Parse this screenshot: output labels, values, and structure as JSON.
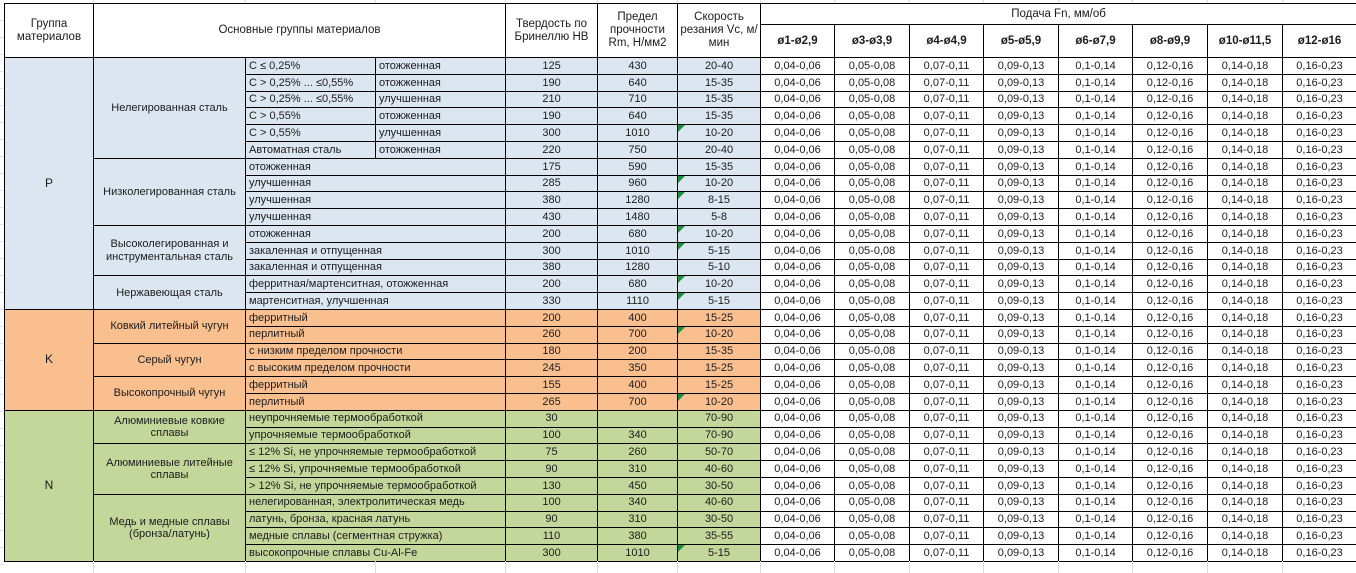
{
  "table": {
    "header": {
      "group": "Группа материалов",
      "main_groups": "Основные группы материалов",
      "hardness": "Твердость по Бринеллю HB",
      "strength": "Предел прочности Rm, Н/мм2",
      "speed": "Скорость резания Vc, м/мин",
      "feed": "Подача Fn, мм/об",
      "feed_columns": [
        "ø1-ø2,9",
        "ø3-ø3,9",
        "ø4-ø4,9",
        "ø5-ø5,9",
        "ø6-ø7,9",
        "ø8-ø9,9",
        "ø10-ø11,5",
        "ø12-ø16"
      ]
    },
    "feed_values": [
      "0,04-0,06",
      "0,05-0,08",
      "0,07-0,11",
      "0,09-0,13",
      "0,1-0,14",
      "0,12-0,16",
      "0,14-0,18",
      "0,16-0,23"
    ],
    "groups": [
      {
        "letter": "P",
        "color": "#dce6f1",
        "blocks": [
          {
            "name": "Нелегированная сталь",
            "rows": [
              {
                "sub1": "C ≤ 0,25%",
                "sub2": "отожженная",
                "hb": "125",
                "rm": "430",
                "vc": "20-40",
                "flag": false
              },
              {
                "sub1": "C > 0,25% ... ≤0,55%",
                "sub2": "отожженная",
                "hb": "190",
                "rm": "640",
                "vc": "15-35",
                "flag": false
              },
              {
                "sub1": "C > 0,25% ... ≤0,55%",
                "sub2": "улучшенная",
                "hb": "210",
                "rm": "710",
                "vc": "15-35",
                "flag": false
              },
              {
                "sub1": "C > 0,55%",
                "sub2": "отожженная",
                "hb": "190",
                "rm": "640",
                "vc": "15-35",
                "flag": false
              },
              {
                "sub1": "C > 0,55%",
                "sub2": "улучшенная",
                "hb": "300",
                "rm": "1010",
                "vc": "10-20",
                "flag": true
              },
              {
                "sub1": "Автоматная сталь",
                "sub2": "отожженная",
                "hb": "220",
                "rm": "750",
                "vc": "20-40",
                "flag": false
              }
            ]
          },
          {
            "name": "Низколегированная сталь",
            "rows": [
              {
                "sub": "отожженная",
                "hb": "175",
                "rm": "590",
                "vc": "15-35",
                "flag": false
              },
              {
                "sub": "улучшенная",
                "hb": "285",
                "rm": "960",
                "vc": "10-20",
                "flag": true
              },
              {
                "sub": "улучшенная",
                "hb": "380",
                "rm": "1280",
                "vc": "8-15",
                "flag": true
              },
              {
                "sub": "улучшенная",
                "hb": "430",
                "rm": "1480",
                "vc": "5-8",
                "flag": false
              }
            ]
          },
          {
            "name": "Высоколегированная и инструментальная сталь",
            "rows": [
              {
                "sub": "отожженная",
                "hb": "200",
                "rm": "680",
                "vc": "10-20",
                "flag": true
              },
              {
                "sub": "закаленная и отпущенная",
                "hb": "300",
                "rm": "1010",
                "vc": "5-15",
                "flag": true
              },
              {
                "sub": "закаленная и отпущенная",
                "hb": "380",
                "rm": "1280",
                "vc": "5-10",
                "flag": false
              }
            ]
          },
          {
            "name": "Нержавеющая сталь",
            "rows": [
              {
                "sub": "ферритная/мартенситная, отожженная",
                "hb": "200",
                "rm": "680",
                "vc": "10-20",
                "flag": true
              },
              {
                "sub": "мартенситная, улучшенная",
                "hb": "330",
                "rm": "1110",
                "vc": "5-15",
                "flag": true
              }
            ]
          }
        ]
      },
      {
        "letter": "K",
        "color": "#fabf8f",
        "blocks": [
          {
            "name": "Ковкий литейный чугун",
            "rows": [
              {
                "sub": "ферритный",
                "hb": "200",
                "rm": "400",
                "vc": "15-25",
                "flag": false
              },
              {
                "sub": "перлитный",
                "hb": "260",
                "rm": "700",
                "vc": "10-20",
                "flag": true
              }
            ]
          },
          {
            "name": "Серый чугун",
            "rows": [
              {
                "sub": "с низким пределом прочности",
                "hb": "180",
                "rm": "200",
                "vc": "15-35",
                "flag": false
              },
              {
                "sub": "с высоким пределом прочности",
                "hb": "245",
                "rm": "350",
                "vc": "15-25",
                "flag": false
              }
            ]
          },
          {
            "name": "Высокопрочный чугун",
            "rows": [
              {
                "sub": "ферритный",
                "hb": "155",
                "rm": "400",
                "vc": "15-25",
                "flag": false
              },
              {
                "sub": "перлитный",
                "hb": "265",
                "rm": "700",
                "vc": "10-20",
                "flag": true
              }
            ]
          }
        ]
      },
      {
        "letter": "N",
        "color": "#c4d79b",
        "blocks": [
          {
            "name": "Алюминиевые ковкие сплавы",
            "rows": [
              {
                "sub": "неупрочняемые термообработкой",
                "hb": "30",
                "rm": "",
                "vc": "70-90",
                "flag": false
              },
              {
                "sub": "упрочняемые термообработкой",
                "hb": "100",
                "rm": "340",
                "vc": "70-90",
                "flag": false
              }
            ]
          },
          {
            "name": "Алюминиевые литейные сплавы",
            "rows": [
              {
                "sub": "≤ 12% Si, не упрочняемые термообработкой",
                "hb": "75",
                "rm": "260",
                "vc": "50-70",
                "flag": false
              },
              {
                "sub": "≤ 12% Si, упрочняемые термообработкой",
                "hb": "90",
                "rm": "310",
                "vc": "40-60",
                "flag": false
              },
              {
                "sub": "> 12% Si, не упрочняемые термообработкой",
                "hb": "130",
                "rm": "450",
                "vc": "30-50",
                "flag": false
              }
            ]
          },
          {
            "name": "Медь и медные сплавы (бронза/латунь)",
            "rows": [
              {
                "sub": "нелегированная, электролитическая медь",
                "hb": "100",
                "rm": "340",
                "vc": "40-60",
                "flag": false
              },
              {
                "sub": "латунь, бронза, красная латунь",
                "hb": "90",
                "rm": "310",
                "vc": "30-50",
                "flag": false
              },
              {
                "sub": "медные сплавы (сегментная стружка)",
                "hb": "110",
                "rm": "380",
                "vc": "35-55",
                "flag": false
              },
              {
                "sub": "высокопрочные сплавы Cu-Al-Fe",
                "hb": "300",
                "rm": "1010",
                "vc": "5-15",
                "flag": true
              }
            ]
          }
        ]
      }
    ]
  },
  "colors": {
    "group_p": "#dce6f1",
    "group_k": "#fabf8f",
    "group_n": "#c4d79b",
    "flag_triangle": "#1e8f3e",
    "cell_border": "#000000",
    "gridline": "#d8dde4"
  }
}
